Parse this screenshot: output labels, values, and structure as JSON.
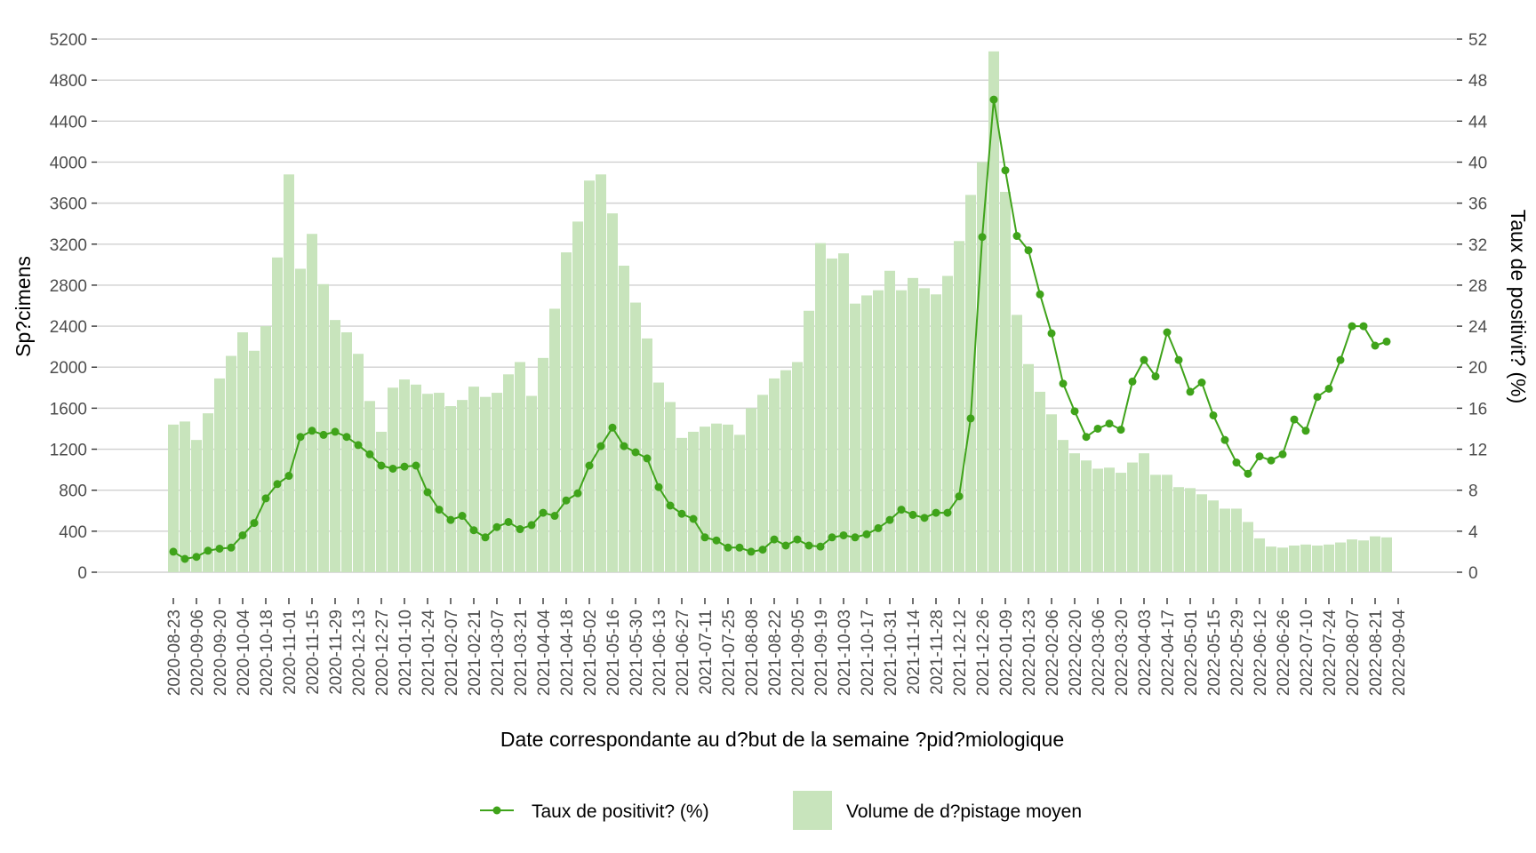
{
  "chart_data": {
    "type": "bar+line",
    "title": "",
    "xlabel": "Date correspondante au d?but de la semaine ?pid?miologique",
    "ylabel_left": "Sp?cimens",
    "ylabel_right": "Taux de positivit? (%)",
    "ylim_left": [
      0,
      5200
    ],
    "ylim_right": [
      0,
      52
    ],
    "yticks_left": [
      0,
      400,
      800,
      1200,
      1600,
      2000,
      2400,
      2800,
      3200,
      3600,
      4000,
      4400,
      4800,
      5200
    ],
    "yticks_right": [
      0,
      4,
      8,
      12,
      16,
      20,
      24,
      28,
      32,
      36,
      40,
      44,
      48,
      52
    ],
    "grid": "horizontal",
    "legend_position": "bottom",
    "xtick_labels": [
      "2020-08-23",
      "2020-09-06",
      "2020-09-20",
      "2020-10-04",
      "2020-10-18",
      "2020-11-01",
      "2020-11-15",
      "2020-11-29",
      "2020-12-13",
      "2020-12-27",
      "2021-01-10",
      "2021-01-24",
      "2021-02-07",
      "2021-02-21",
      "2021-03-07",
      "2021-03-21",
      "2021-04-04",
      "2021-04-18",
      "2021-05-02",
      "2021-05-16",
      "2021-05-30",
      "2021-06-13",
      "2021-06-27",
      "2021-07-11",
      "2021-07-25",
      "2021-08-08",
      "2021-08-22",
      "2021-09-05",
      "2021-09-19",
      "2021-10-03",
      "2021-10-17",
      "2021-10-31",
      "2021-11-14",
      "2021-11-28",
      "2021-12-12",
      "2021-12-26",
      "2022-01-09",
      "2022-01-23",
      "2022-02-06",
      "2022-02-20",
      "2022-03-06",
      "2022-03-20",
      "2022-04-03",
      "2022-04-17",
      "2022-05-01",
      "2022-05-15",
      "2022-05-29",
      "2022-06-12",
      "2022-06-26",
      "2022-07-10",
      "2022-07-24",
      "2022-08-07",
      "2022-08-21",
      "2022-09-04"
    ],
    "x_start": "2020-08-23",
    "x_interval": "weekly",
    "series": [
      {
        "name": "Volume de d?pistage moyen",
        "type": "bar",
        "axis": "left",
        "color": "#c8e4bc",
        "values": [
          1440,
          1470,
          1290,
          1550,
          1890,
          2110,
          2340,
          2160,
          2400,
          3070,
          3880,
          2960,
          3300,
          2810,
          2460,
          2340,
          2130,
          1670,
          1370,
          1800,
          1880,
          1830,
          1740,
          1750,
          1620,
          1680,
          1810,
          1710,
          1750,
          1930,
          2050,
          1720,
          2090,
          2570,
          3120,
          3420,
          3820,
          3880,
          3500,
          2990,
          2630,
          2280,
          1850,
          1660,
          1310,
          1370,
          1420,
          1450,
          1440,
          1340,
          1600,
          1730,
          1890,
          1970,
          2050,
          2550,
          3210,
          3060,
          3110,
          2620,
          2700,
          2750,
          2940,
          2750,
          2870,
          2770,
          2710,
          2890,
          3230,
          3680,
          4000,
          5080,
          3710,
          2510,
          2030,
          1760,
          1540,
          1290,
          1160,
          1090,
          1010,
          1020,
          970,
          1070,
          1160,
          950,
          950,
          830,
          820,
          760,
          700,
          620,
          620,
          490,
          330,
          250,
          240,
          260,
          270,
          260,
          270,
          290,
          320,
          310,
          350,
          340
        ]
      },
      {
        "name": "Taux de positivit? (%)",
        "type": "line",
        "axis": "right",
        "color": "#3fa31a",
        "values": [
          2.0,
          1.3,
          1.5,
          2.1,
          2.3,
          2.4,
          3.6,
          4.8,
          7.2,
          8.6,
          9.4,
          13.2,
          13.8,
          13.4,
          13.7,
          13.2,
          12.4,
          11.5,
          10.4,
          10.1,
          10.3,
          10.4,
          7.8,
          6.1,
          5.1,
          5.5,
          4.1,
          3.4,
          4.4,
          4.9,
          4.2,
          4.6,
          5.8,
          5.5,
          7.0,
          7.7,
          10.4,
          12.3,
          14.1,
          12.3,
          11.7,
          11.1,
          8.3,
          6.5,
          5.7,
          5.2,
          3.4,
          3.1,
          2.4,
          2.4,
          2.0,
          2.2,
          3.2,
          2.6,
          3.2,
          2.6,
          2.5,
          3.4,
          3.6,
          3.4,
          3.7,
          4.3,
          5.1,
          6.1,
          5.6,
          5.3,
          5.8,
          5.8,
          7.4,
          15.0,
          32.7,
          46.1,
          39.2,
          32.8,
          31.4,
          27.1,
          23.3,
          18.4,
          15.7,
          13.2,
          14.0,
          14.5,
          13.9,
          18.6,
          20.7,
          19.1,
          23.4,
          20.7,
          17.6,
          18.5,
          15.3,
          12.9,
          10.7,
          9.6,
          11.3,
          10.9,
          11.5,
          14.9,
          13.8,
          17.1,
          17.9,
          20.7,
          24.0,
          24.0,
          22.1,
          22.5
        ]
      }
    ]
  },
  "legend": {
    "line_label": "Taux de positivit? (%)",
    "bar_label": "Volume de d?pistage moyen"
  }
}
